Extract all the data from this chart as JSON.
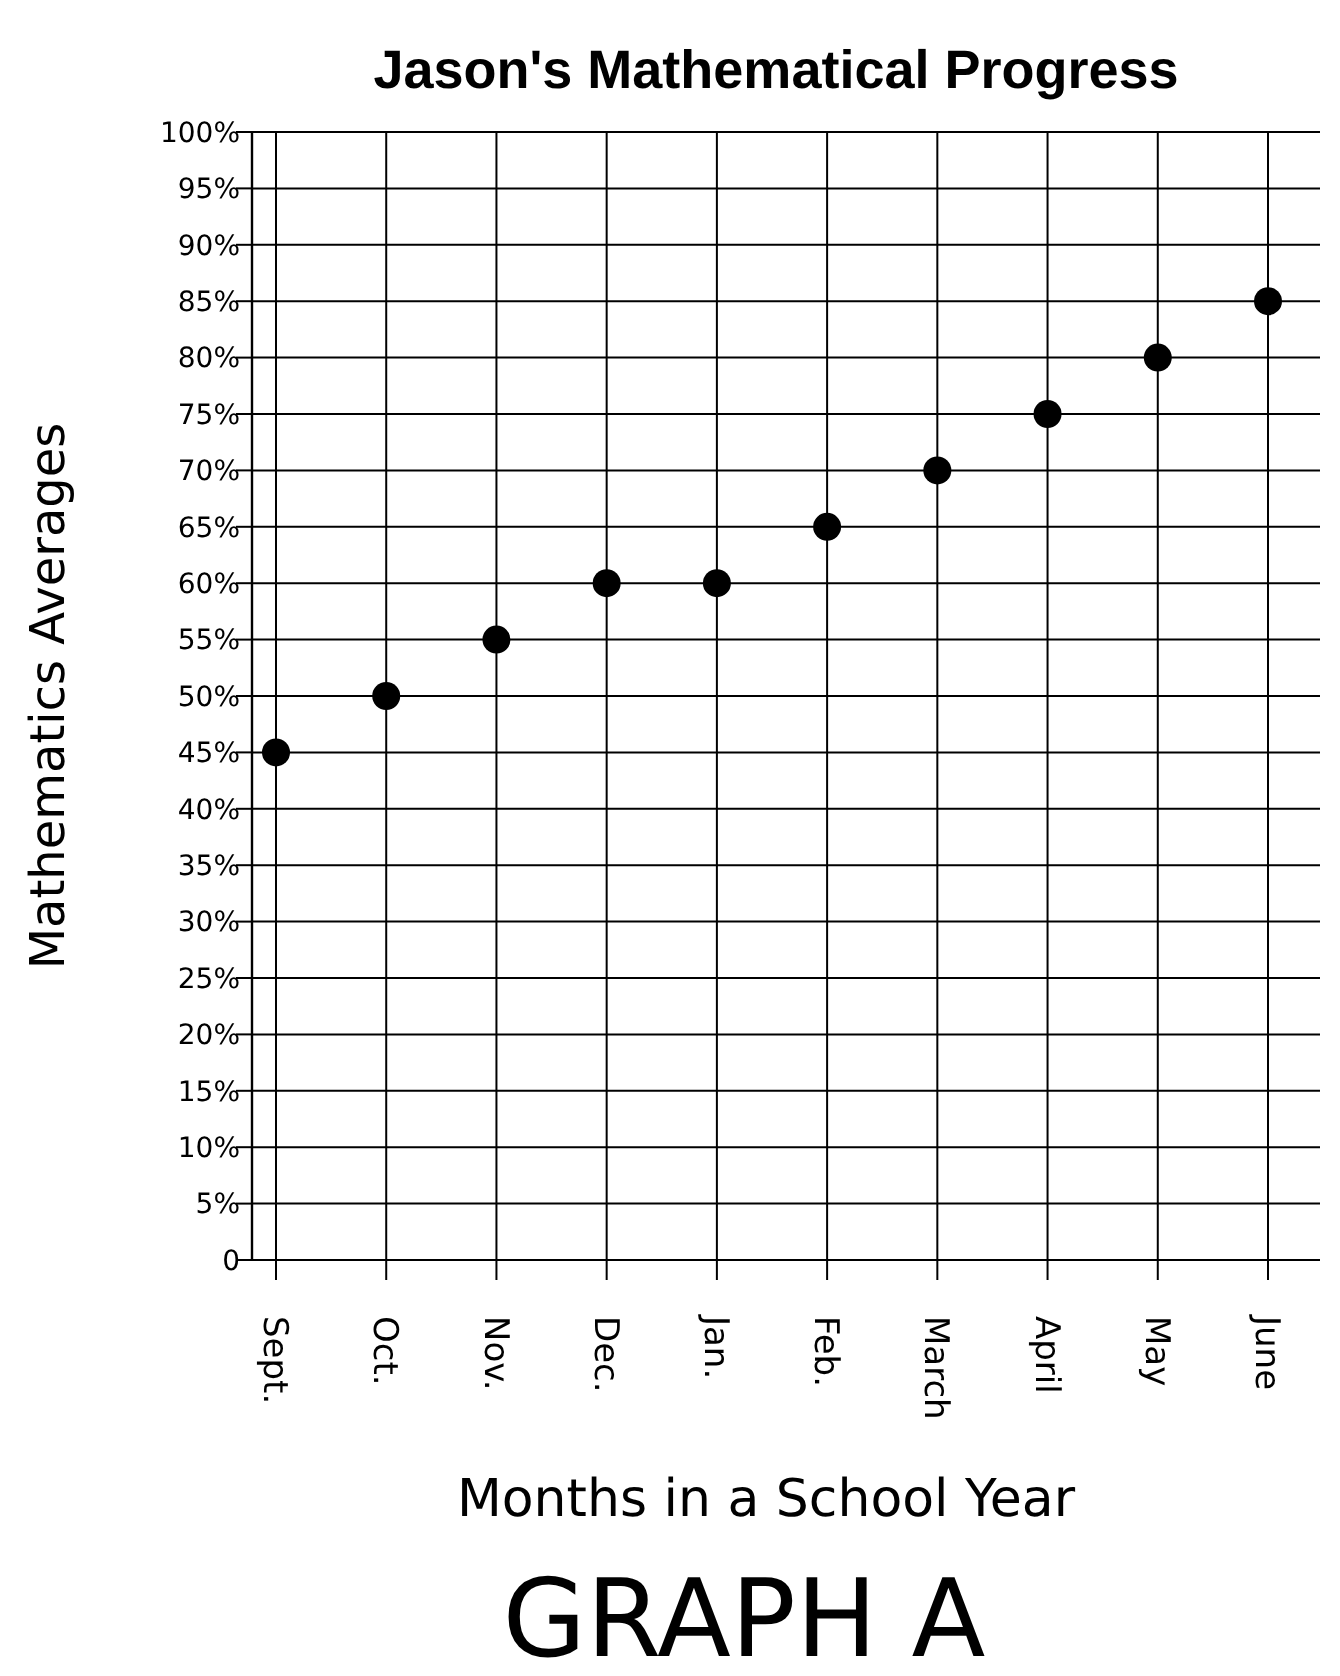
{
  "chart_data": {
    "type": "scatter",
    "title": "Jason's Mathematical Progress",
    "xlabel": "Months in a School Year",
    "ylabel": "Mathematics Averages",
    "categories": [
      "Sept.",
      "Oct.",
      "Nov.",
      "Dec.",
      "Jan.",
      "Feb.",
      "March",
      "April",
      "May",
      "June"
    ],
    "series": [
      {
        "color": "#000000",
        "values": [
          45,
          50,
          55,
          60,
          60,
          65,
          70,
          75,
          80,
          85
        ]
      }
    ],
    "ylim": [
      0,
      100
    ],
    "yticks": [
      0,
      {
        "value": 5,
        "label": "5%"
      },
      {
        "value": 10,
        "label": "10%"
      },
      {
        "value": 15,
        "label": "15%"
      },
      {
        "value": 20,
        "label": "20%"
      },
      {
        "value": 25,
        "label": "25%"
      },
      {
        "value": 30,
        "label": "30%"
      },
      {
        "value": 35,
        "label": "35%"
      },
      {
        "value": 40,
        "label": "40%"
      },
      {
        "value": 45,
        "label": "45%"
      },
      {
        "value": 50,
        "label": "50%"
      },
      {
        "value": 55,
        "label": "55%"
      },
      {
        "value": 60,
        "label": "60%"
      },
      {
        "value": 65,
        "label": "65%"
      },
      {
        "value": 70,
        "label": "70%"
      },
      {
        "value": 75,
        "label": "75%"
      },
      {
        "value": 80,
        "label": "80%"
      },
      {
        "value": 85,
        "label": "85%"
      },
      {
        "value": 90,
        "label": "90%"
      },
      {
        "value": 95,
        "label": "95%"
      },
      {
        "value": 100,
        "label": "100%"
      }
    ],
    "grid": true,
    "marker": "circle",
    "annotations": [
      "GRAPH A"
    ]
  }
}
